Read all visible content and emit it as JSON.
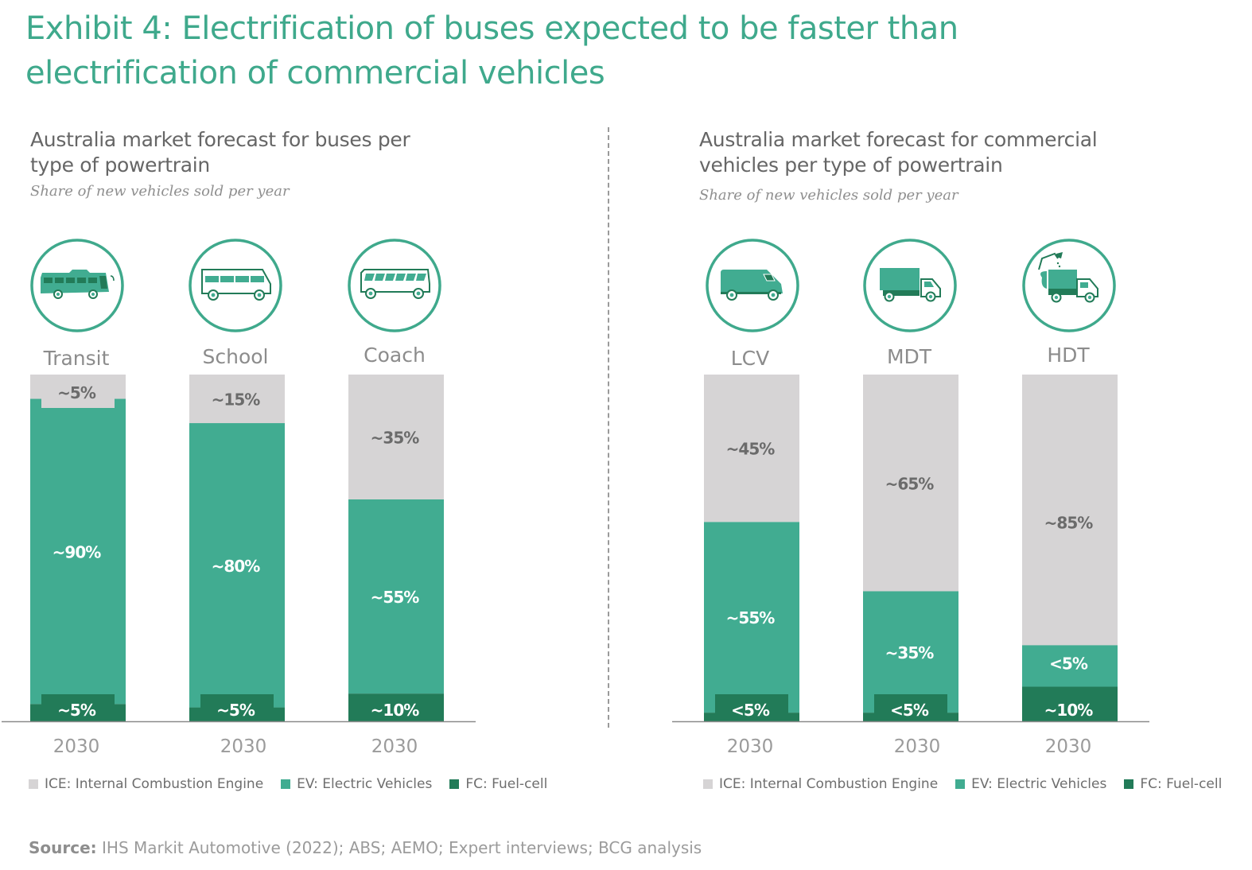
{
  "title_lines": [
    "Exhibit 4: Electrification of buses expected to be faster than",
    "electrification of commercial vehicles"
  ],
  "colors": {
    "ICE": "#d6d4d5",
    "EV": "#41ac91",
    "FC": "#227b58",
    "title": "#3fa98c",
    "icon_ring": "#3fa98c"
  },
  "chart_data": [
    {
      "type": "bar",
      "stacked": true,
      "title": "Australia market forecast for buses per type of powertrain",
      "title_lines": [
        "Australia market forecast for buses per",
        "type of powertrain"
      ],
      "subtitle": "Share of new vehicles sold per year",
      "categories": [
        "Transit",
        "School",
        "Coach"
      ],
      "icons": [
        "transit-bus-icon",
        "school-bus-icon",
        "coach-bus-icon"
      ],
      "xlabels": [
        "2030",
        "2030",
        "2030"
      ],
      "ylim": [
        0,
        100
      ],
      "grid": false,
      "series": [
        {
          "name": "FC",
          "values": [
            5,
            4,
            8
          ],
          "labels": [
            "~5%",
            "~5%",
            "~10%"
          ]
        },
        {
          "name": "EV",
          "values": [
            88,
            82,
            56
          ],
          "labels": [
            "~90%",
            "~80%",
            "~55%"
          ]
        },
        {
          "name": "ICE",
          "values": [
            7,
            14,
            36
          ],
          "labels": [
            "~5%",
            "~15%",
            "~35%"
          ]
        }
      ],
      "legend": [
        "ICE: Internal Combustion Engine",
        "EV: Electric Vehicles",
        "FC: Fuel-cell"
      ],
      "legend_position": "bottom"
    },
    {
      "type": "bar",
      "stacked": true,
      "title": "Australia market forecast for commercial vehicles per type of powertrain",
      "title_lines": [
        "Australia market forecast for commercial",
        "vehicles per type of powertrain"
      ],
      "subtitle": "Share of new vehicles sold per year",
      "categories": [
        "LCV",
        "MDT",
        "HDT"
      ],
      "icons": [
        "van-icon",
        "box-truck-icon",
        "garbage-truck-icon"
      ],
      "xlabels": [
        "2030",
        "2030",
        "2030"
      ],
      "ylim": [
        0,
        100
      ],
      "grid": false,
      "series": [
        {
          "name": "FC",
          "values": [
            2.5,
            2.5,
            10
          ],
          "labels": [
            "<5%",
            "<5%",
            "~10%"
          ]
        },
        {
          "name": "EV",
          "values": [
            55,
            35,
            5
          ],
          "labels": [
            "~55%",
            "~35%",
            "<5%"
          ]
        },
        {
          "name": "ICE",
          "values": [
            42.5,
            62.5,
            85
          ],
          "labels": [
            "~45%",
            "~65%",
            "~85%"
          ]
        }
      ],
      "legend": [
        "ICE: Internal Combustion Engine",
        "EV: Electric Vehicles",
        "FC: Fuel-cell"
      ],
      "legend_position": "bottom"
    }
  ],
  "source_label": "Source:",
  "source_text": "IHS Markit Automotive (2022); ABS; AEMO; Expert interviews; BCG analysis"
}
